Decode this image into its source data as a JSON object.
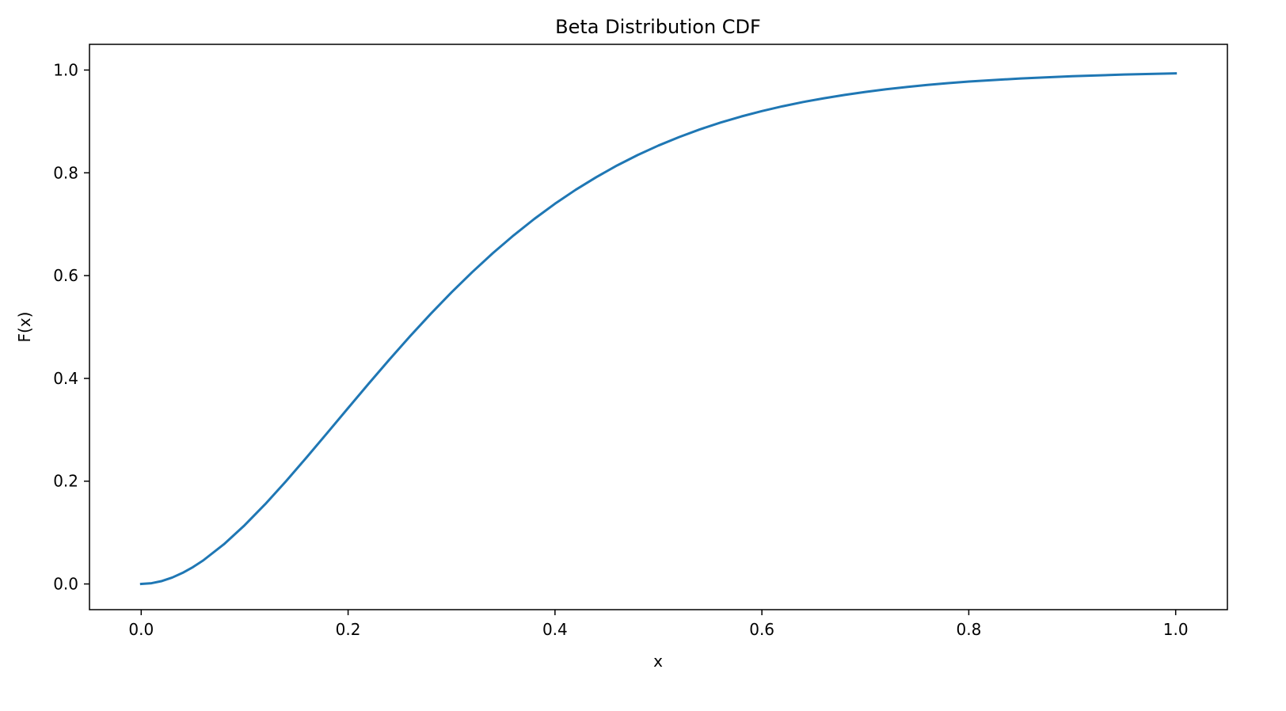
{
  "chart_data": {
    "type": "line",
    "title": "Beta Distribution CDF",
    "xlabel": "x",
    "ylabel": "F(x)",
    "xlim": [
      -0.05,
      1.05
    ],
    "ylim": [
      -0.05,
      1.05
    ],
    "xticks": [
      0.0,
      0.2,
      0.4,
      0.6,
      0.8,
      1.0
    ],
    "yticks": [
      0.0,
      0.2,
      0.4,
      0.6,
      0.8,
      1.0
    ],
    "xtick_labels": [
      "0.0",
      "0.2",
      "0.4",
      "0.6",
      "0.8",
      "1.0"
    ],
    "ytick_labels": [
      "0.0",
      "0.2",
      "0.4",
      "0.6",
      "0.8",
      "1.0"
    ],
    "grid": false,
    "series": [
      {
        "color": "#1f77b4",
        "x": [
          0.0,
          0.01,
          0.02,
          0.03,
          0.04,
          0.05,
          0.06,
          0.08,
          0.1,
          0.12,
          0.14,
          0.16,
          0.18,
          0.2,
          0.22,
          0.24,
          0.26,
          0.28,
          0.3,
          0.32,
          0.34,
          0.36,
          0.38,
          0.4,
          0.42,
          0.44,
          0.46,
          0.48,
          0.5,
          0.52,
          0.54,
          0.56,
          0.58,
          0.6,
          0.62,
          0.64,
          0.66,
          0.68,
          0.7,
          0.72,
          0.74,
          0.76,
          0.78,
          0.8,
          0.85,
          0.9,
          0.95,
          1.0
        ],
        "y": [
          0.0,
          0.0015,
          0.0057,
          0.0125,
          0.0216,
          0.0328,
          0.0459,
          0.0773,
          0.1143,
          0.1555,
          0.2,
          0.2465,
          0.2942,
          0.3423,
          0.39,
          0.4368,
          0.4822,
          0.5259,
          0.5675,
          0.6068,
          0.6438,
          0.6783,
          0.7103,
          0.7399,
          0.767,
          0.7917,
          0.8143,
          0.8347,
          0.8531,
          0.8696,
          0.8845,
          0.8977,
          0.9096,
          0.9201,
          0.9295,
          0.9378,
          0.9451,
          0.9516,
          0.9574,
          0.9625,
          0.967,
          0.971,
          0.9745,
          0.9776,
          0.9836,
          0.988,
          0.9912,
          0.9936
        ]
      }
    ]
  }
}
